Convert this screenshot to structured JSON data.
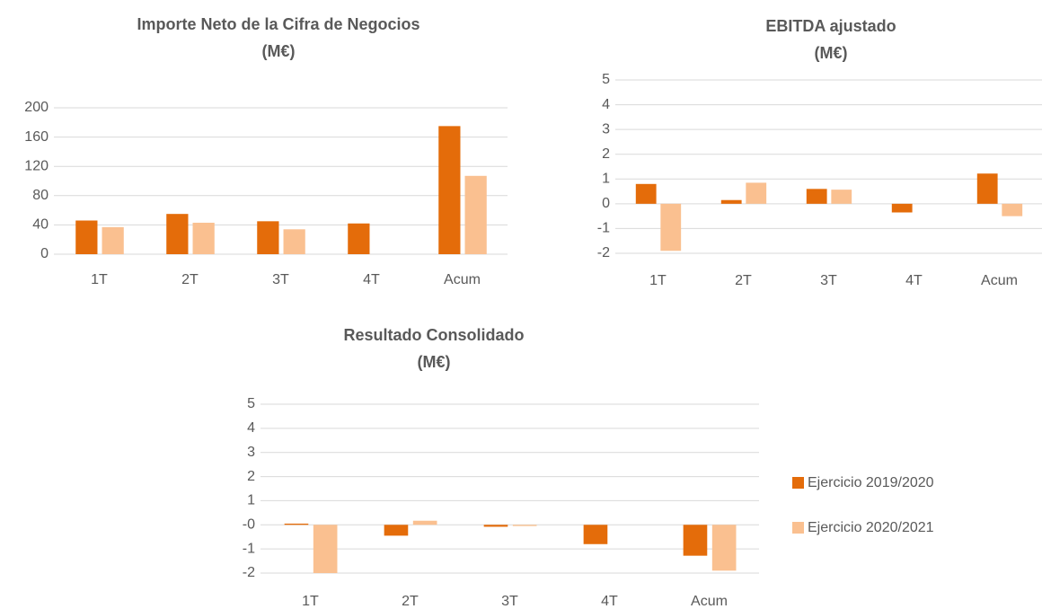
{
  "chart_data": [
    {
      "type": "bar",
      "title": [
        "Importe Neto de la Cifra de Negocios",
        "(M€)"
      ],
      "categories": [
        "1T",
        "2T",
        "3T",
        "4T",
        "Acum"
      ],
      "series": [
        {
          "color": "#e46c0a",
          "values": [
            46,
            55,
            45,
            42,
            175
          ]
        },
        {
          "color": "#fac090",
          "values": [
            37,
            43,
            34,
            null,
            107
          ]
        }
      ],
      "ylim": [
        0,
        200
      ],
      "yticks": [
        0,
        40,
        80,
        120,
        160,
        200
      ],
      "grid": true
    },
    {
      "type": "bar",
      "title": [
        "EBITDA ajustado",
        "(M€)"
      ],
      "categories": [
        "1T",
        "2T",
        "3T",
        "4T",
        "Acum"
      ],
      "series": [
        {
          "color": "#e46c0a",
          "values": [
            0.8,
            0.15,
            0.6,
            -0.35,
            1.22
          ]
        },
        {
          "color": "#fac090",
          "values": [
            -1.9,
            0.85,
            0.57,
            null,
            -0.5
          ]
        }
      ],
      "ylim": [
        -2,
        5
      ],
      "yticks": [
        -2,
        -1,
        0,
        1,
        2,
        3,
        4,
        5
      ],
      "grid": true
    },
    {
      "type": "bar",
      "title": [
        "Resultado Consolidado",
        "(M€)"
      ],
      "categories": [
        "1T",
        "2T",
        "3T",
        "4T",
        "Acum"
      ],
      "series": [
        {
          "name": "Ejercicio 2019/2020",
          "color": "#e46c0a",
          "values": [
            0.05,
            -0.45,
            -0.08,
            -0.8,
            -1.28
          ]
        },
        {
          "name": "Ejercicio 2020/2021",
          "color": "#fac090",
          "values": [
            -2.0,
            0.17,
            -0.05,
            null,
            -1.9
          ]
        }
      ],
      "ylim": [
        -2,
        5
      ],
      "yticks": [
        -2,
        -1,
        {
          "value": 0,
          "label": "-0"
        },
        1,
        2,
        3,
        4,
        5
      ],
      "grid": true,
      "legend": "right"
    }
  ]
}
